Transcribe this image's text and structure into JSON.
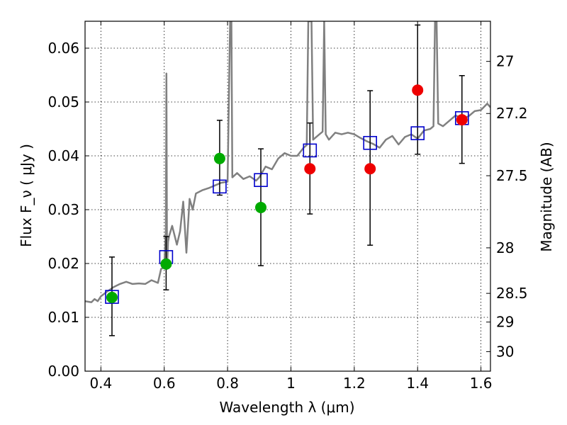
{
  "chart_data": {
    "type": "scatter",
    "xlabel": "Wavelength  λ (μm)",
    "ylabel": "Flux  F_ν  ( μJy )",
    "ylabel_right": "Magnitude (AB)",
    "xlim": [
      0.35,
      1.63
    ],
    "ylim": [
      0.0,
      0.065
    ],
    "x_ticks": [
      0.4,
      0.6,
      0.8,
      1.0,
      1.2,
      1.4,
      1.6
    ],
    "x_tick_labels": [
      "0.4",
      "0.6",
      "0.8",
      "1",
      "1.2",
      "1.4",
      "1.6"
    ],
    "y_ticks": [
      0.0,
      0.01,
      0.02,
      0.03,
      0.04,
      0.05,
      0.06
    ],
    "y_tick_labels": [
      "0.00",
      "0.01",
      "0.02",
      "0.03",
      "0.04",
      "0.05",
      "0.06"
    ],
    "right_ticks": [
      27,
      27.2,
      27.5,
      28,
      28.5,
      29,
      30
    ],
    "right_tick_labels": [
      "27",
      "27.2",
      "27.5",
      "28",
      "28.5",
      "29",
      "30"
    ],
    "grid": true,
    "colors": {
      "model_spectrum": "#808080",
      "model_photometry": "#0000cc",
      "observed_green": "#00aa00",
      "observed_red": "#ee0000",
      "errorbar": "#000000"
    },
    "series": [
      {
        "kind": "observed-photometry",
        "x": [
          0.435,
          0.606,
          0.775,
          0.905,
          1.06,
          1.25,
          1.4,
          1.54
        ],
        "y": [
          0.0137,
          0.0199,
          0.0395,
          0.0304,
          0.0376,
          0.0376,
          0.0522,
          0.0467
        ],
        "yerr_low": [
          0.0066,
          0.0151,
          0.0327,
          0.0196,
          0.0292,
          0.0234,
          0.0403,
          0.0386
        ],
        "yerr_high": [
          0.0212,
          0.025,
          0.0466,
          0.0413,
          0.0461,
          0.0521,
          0.0643,
          0.0549
        ],
        "marker_colors": [
          "#00aa00",
          "#00aa00",
          "#00aa00",
          "#00aa00",
          "#ee0000",
          "#ee0000",
          "#ee0000",
          "#ee0000"
        ]
      },
      {
        "kind": "model-photometry",
        "x": [
          0.435,
          0.606,
          0.775,
          0.905,
          1.06,
          1.25,
          1.4,
          1.54
        ],
        "y": [
          0.0138,
          0.0212,
          0.0343,
          0.0355,
          0.041,
          0.0424,
          0.0442,
          0.047
        ]
      },
      {
        "kind": "model-spectrum",
        "x": [
          0.35,
          0.37,
          0.38,
          0.39,
          0.4,
          0.42,
          0.44,
          0.46,
          0.48,
          0.5,
          0.52,
          0.54,
          0.56,
          0.58,
          0.59,
          0.6,
          0.605,
          0.607,
          0.609,
          0.612,
          0.615,
          0.625,
          0.64,
          0.65,
          0.66,
          0.67,
          0.68,
          0.69,
          0.7,
          0.72,
          0.74,
          0.76,
          0.78,
          0.8,
          0.808,
          0.81,
          0.812,
          0.815,
          0.83,
          0.85,
          0.87,
          0.89,
          0.9,
          0.92,
          0.94,
          0.96,
          0.98,
          1.0,
          1.02,
          1.04,
          1.05,
          1.055,
          1.06,
          1.065,
          1.07,
          1.09,
          1.1,
          1.105,
          1.11,
          1.12,
          1.14,
          1.16,
          1.18,
          1.2,
          1.22,
          1.24,
          1.26,
          1.28,
          1.3,
          1.32,
          1.34,
          1.36,
          1.38,
          1.4,
          1.42,
          1.44,
          1.45,
          1.455,
          1.46,
          1.465,
          1.48,
          1.5,
          1.52,
          1.54,
          1.56,
          1.58,
          1.6,
          1.62,
          1.63
        ],
        "y": [
          0.013,
          0.0128,
          0.0134,
          0.013,
          0.0139,
          0.0148,
          0.0156,
          0.0162,
          0.0166,
          0.0162,
          0.0163,
          0.0162,
          0.0169,
          0.0164,
          0.019,
          0.0193,
          0.026,
          0.0553,
          0.019,
          0.024,
          0.025,
          0.027,
          0.0235,
          0.026,
          0.0315,
          0.022,
          0.032,
          0.03,
          0.033,
          0.0336,
          0.034,
          0.0345,
          0.035,
          0.0352,
          0.065,
          0.065,
          0.065,
          0.036,
          0.0368,
          0.0357,
          0.0362,
          0.0354,
          0.036,
          0.038,
          0.0375,
          0.0395,
          0.0405,
          0.04,
          0.04,
          0.0415,
          0.042,
          0.065,
          0.065,
          0.065,
          0.043,
          0.044,
          0.0445,
          0.065,
          0.044,
          0.043,
          0.0443,
          0.044,
          0.0443,
          0.044,
          0.0433,
          0.0427,
          0.0422,
          0.0415,
          0.043,
          0.0437,
          0.0421,
          0.0435,
          0.044,
          0.0432,
          0.0447,
          0.045,
          0.0455,
          0.065,
          0.065,
          0.046,
          0.0455,
          0.0465,
          0.0475,
          0.047,
          0.0473,
          0.0483,
          0.0485,
          0.0497,
          0.049
        ]
      }
    ]
  }
}
